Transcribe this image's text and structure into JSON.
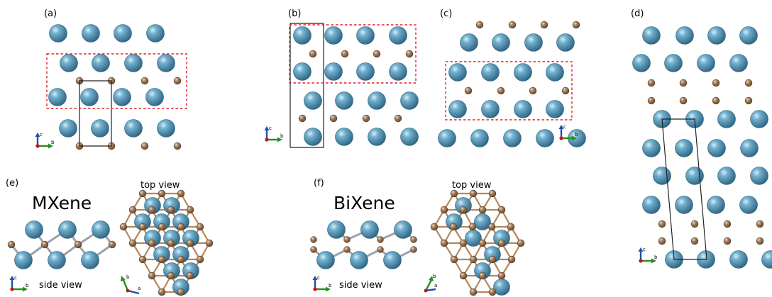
{
  "panels": {
    "a": {
      "label": "(a)"
    },
    "b": {
      "label": "(b)"
    },
    "c": {
      "label": "(c)"
    },
    "d": {
      "label": "(d)"
    },
    "e": {
      "label": "(e)",
      "title": "MXene",
      "side_view": "side view",
      "top_view": "top view"
    },
    "f": {
      "label": "(f)",
      "title": "BiXene",
      "side_view": "side view",
      "top_view": "top view"
    }
  },
  "axes": {
    "c": "c",
    "b": "b",
    "a": "a"
  },
  "colors": {
    "large_atom": "#4a88a8",
    "small_atom": "#8d6a4c",
    "bond": "#b5865a",
    "side_bond": "#9aa3ab",
    "dashed_box": "#e0212b",
    "axis_c": "#1f4fa8",
    "axis_b": "#2a8c2a",
    "axis_origin": "#cc1111"
  }
}
